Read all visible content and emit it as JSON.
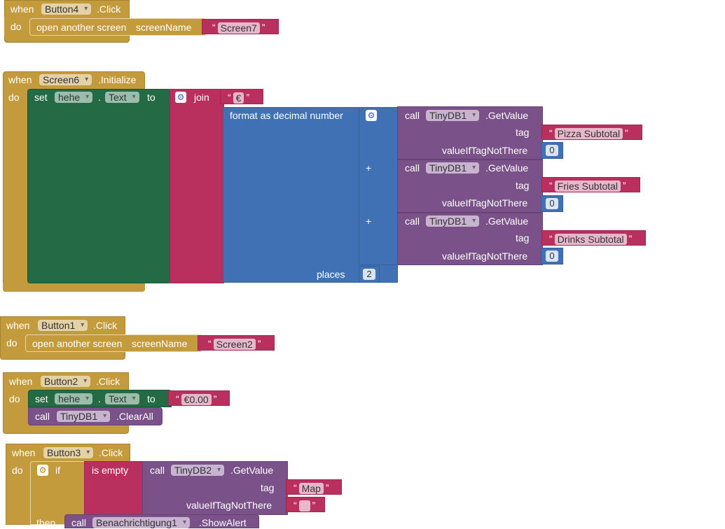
{
  "blocks": {
    "button4_click": {
      "when": "when",
      "component": "Button4",
      "event": ".Click",
      "do": "do",
      "action": "open another screen",
      "param": "screenName",
      "screen": "Screen7"
    },
    "screen6_init": {
      "when": "when",
      "component": "Screen6",
      "event": ".Initialize",
      "do": "do",
      "set": "set",
      "target": "hehe",
      "property": "Text",
      "dot": ".",
      "to": "to",
      "join": "join",
      "currency": "€",
      "format": "format as decimal number",
      "calls": [
        {
          "call": "call",
          "component": "TinyDB1",
          "method": ".GetValue",
          "tag_label": "tag",
          "tag": "Pizza Subtotal",
          "default_label": "valueIfTagNotThere",
          "default": "0"
        },
        {
          "call": "call",
          "component": "TinyDB1",
          "method": ".GetValue",
          "tag_label": "tag",
          "tag": "Fries Subtotal",
          "default_label": "valueIfTagNotThere",
          "default": "0"
        },
        {
          "call": "call",
          "component": "TinyDB1",
          "method": ".GetValue",
          "tag_label": "tag",
          "tag": "Drinks Subtotal",
          "default_label": "valueIfTagNotThere",
          "default": "0"
        }
      ],
      "plus": "+",
      "places_label": "places",
      "places": "2"
    },
    "button1_click": {
      "when": "when",
      "component": "Button1",
      "event": ".Click",
      "do": "do",
      "action": "open another screen",
      "param": "screenName",
      "screen": "Screen2"
    },
    "button2_click": {
      "when": "when",
      "component": "Button2",
      "event": ".Click",
      "do": "do",
      "set": "set",
      "target": "hehe",
      "dot": ".",
      "property": "Text",
      "to": "to",
      "value": "€0.00",
      "call": "call",
      "call_component": "TinyDB1",
      "call_method": ".ClearAll"
    },
    "button3_click": {
      "when": "when",
      "component": "Button3",
      "event": ".Click",
      "do": "do",
      "if": "if",
      "is_empty": "is empty",
      "call": "call",
      "call_component": "TinyDB2",
      "call_method": ".GetValue",
      "tag_label": "tag",
      "tag": "Map",
      "default_label": "valueIfTagNotThere",
      "default": "",
      "then": "then",
      "then_call": "call",
      "then_component": "Benachrichtigung1",
      "then_method": ".ShowAlert"
    }
  },
  "colors": {
    "event": "#c39b3c",
    "set": "#246b45",
    "text": "#b92f5e",
    "math": "#3f71b4",
    "component": "#7a5188"
  }
}
